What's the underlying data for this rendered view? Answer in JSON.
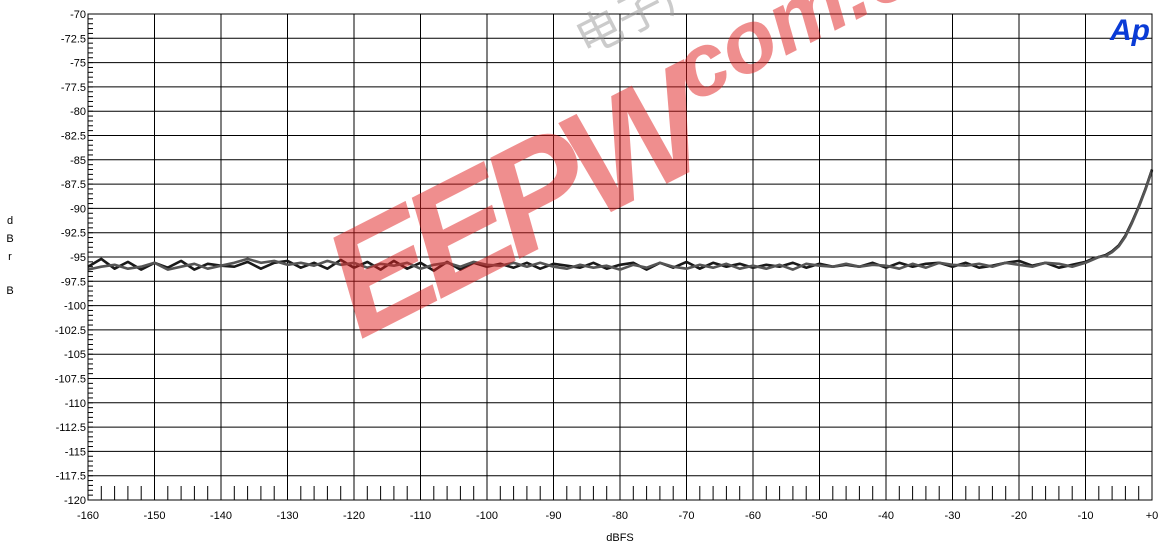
{
  "chart_data": {
    "type": "line",
    "xlabel": "dBFS",
    "ylabel": "dBr B",
    "xlim": [
      -160,
      0
    ],
    "ylim": [
      -120,
      -70
    ],
    "grid": true,
    "x_ticks": [
      -160,
      -150,
      -140,
      -130,
      -120,
      -110,
      -100,
      -90,
      -80,
      -70,
      -60,
      -50,
      -40,
      -30,
      -20,
      -10,
      0
    ],
    "x_tick_labels": [
      "-160",
      "-150",
      "-140",
      "-130",
      "-120",
      "-110",
      "-100",
      "-90",
      "-80",
      "-70",
      "-60",
      "-50",
      "-40",
      "-30",
      "-20",
      "-10",
      "+0"
    ],
    "y_ticks": [
      -70,
      -72.5,
      -75,
      -77.5,
      -80,
      -82.5,
      -85,
      -87.5,
      -90,
      -92.5,
      -95,
      -97.5,
      -100,
      -102.5,
      -105,
      -107.5,
      -110,
      -112.5,
      -115,
      -117.5,
      -120
    ],
    "y_tick_labels": [
      "-70",
      "-72.5",
      "-75",
      "-77.5",
      "-80",
      "-82.5",
      "-85",
      "-87.5",
      "-90",
      "-92.5",
      "-95",
      "-97.5",
      "-100",
      "-102.5",
      "-105",
      "-107.5",
      "-110",
      "-112.5",
      "-115",
      "-117.5",
      "-120"
    ],
    "series": [
      {
        "color": "#1a1a1a",
        "x": [
          -160,
          -158,
          -156,
          -154,
          -152,
          -150,
          -148,
          -146,
          -144,
          -142,
          -140,
          -138,
          -136,
          -134,
          -132,
          -130,
          -128,
          -126,
          -124,
          -122,
          -120,
          -118,
          -116,
          -114,
          -112,
          -110,
          -108,
          -106,
          -104,
          -102,
          -100,
          -98,
          -96,
          -94,
          -92,
          -90,
          -88,
          -86,
          -84,
          -82,
          -80,
          -78,
          -76,
          -74,
          -72,
          -70,
          -68,
          -66,
          -64,
          -62,
          -60,
          -58,
          -56,
          -54,
          -52,
          -50,
          -48,
          -46,
          -44,
          -42,
          -40,
          -38,
          -36,
          -34,
          -32,
          -30,
          -28,
          -26,
          -24,
          -22,
          -20,
          -18,
          -16,
          -14,
          -12,
          -10,
          -9,
          -8,
          -7,
          -6,
          -5,
          -4,
          -3,
          -2,
          -1,
          0
        ],
        "y": [
          -96.0,
          -95.2,
          -96.2,
          -95.5,
          -96.3,
          -95.6,
          -96.1,
          -95.4,
          -96.3,
          -95.7,
          -95.9,
          -96.0,
          -95.5,
          -96.2,
          -95.6,
          -95.4,
          -96.1,
          -95.6,
          -96.2,
          -95.3,
          -96.1,
          -95.5,
          -96.3,
          -95.4,
          -96.2,
          -95.6,
          -96.4,
          -95.5,
          -96.3,
          -95.6,
          -96.0,
          -95.7,
          -96.1,
          -95.6,
          -96.2,
          -95.7,
          -95.9,
          -96.1,
          -95.6,
          -96.2,
          -95.8,
          -95.6,
          -96.3,
          -95.6,
          -96.1,
          -95.5,
          -96.2,
          -95.6,
          -96.0,
          -95.7,
          -96.1,
          -95.8,
          -96.0,
          -95.6,
          -96.1,
          -95.7,
          -96.0,
          -95.8,
          -96.0,
          -95.6,
          -96.1,
          -95.6,
          -96.0,
          -95.7,
          -95.6,
          -96.0,
          -95.6,
          -96.1,
          -95.9,
          -95.6,
          -95.4,
          -95.9,
          -95.6,
          -96.1,
          -95.8,
          -95.5,
          -95.2,
          -95.0,
          -94.8,
          -94.4,
          -93.8,
          -92.8,
          -91.4,
          -89.8,
          -88.0,
          -86.0
        ]
      },
      {
        "color": "#555555",
        "x": [
          -160,
          -158,
          -156,
          -154,
          -152,
          -150,
          -148,
          -146,
          -144,
          -142,
          -140,
          -138,
          -136,
          -134,
          -132,
          -130,
          -128,
          -126,
          -124,
          -122,
          -120,
          -118,
          -116,
          -114,
          -112,
          -110,
          -108,
          -106,
          -104,
          -102,
          -100,
          -98,
          -96,
          -94,
          -92,
          -90,
          -88,
          -86,
          -84,
          -82,
          -80,
          -78,
          -76,
          -74,
          -72,
          -70,
          -68,
          -66,
          -64,
          -62,
          -60,
          -58,
          -56,
          -54,
          -52,
          -50,
          -48,
          -46,
          -44,
          -42,
          -40,
          -38,
          -36,
          -34,
          -32,
          -30,
          -28,
          -26,
          -24,
          -22,
          -20,
          -18,
          -16,
          -14,
          -12,
          -10,
          -9,
          -8,
          -7,
          -6,
          -5,
          -4,
          -3,
          -2,
          -1,
          0
        ],
        "y": [
          -96.3,
          -96.0,
          -95.8,
          -96.2,
          -96.0,
          -95.6,
          -96.3,
          -96.0,
          -95.7,
          -96.2,
          -95.9,
          -95.6,
          -95.2,
          -95.6,
          -95.4,
          -95.8,
          -95.6,
          -95.9,
          -95.4,
          -95.8,
          -95.6,
          -96.1,
          -95.7,
          -95.9,
          -95.6,
          -96.2,
          -95.8,
          -95.6,
          -96.0,
          -95.5,
          -95.8,
          -95.9,
          -95.6,
          -96.0,
          -95.6,
          -96.0,
          -96.2,
          -95.8,
          -96.1,
          -95.9,
          -96.3,
          -95.8,
          -96.1,
          -95.6,
          -96.0,
          -96.2,
          -95.8,
          -96.1,
          -95.7,
          -96.2,
          -95.9,
          -96.2,
          -95.8,
          -96.3,
          -95.7,
          -95.9,
          -96.0,
          -95.7,
          -96.0,
          -95.8,
          -95.9,
          -96.2,
          -95.7,
          -96.1,
          -95.6,
          -95.8,
          -95.9,
          -95.7,
          -96.0,
          -95.6,
          -95.8,
          -96.0,
          -95.6,
          -95.7,
          -96.0,
          -95.6,
          -95.3,
          -95.0,
          -94.9,
          -94.5,
          -93.9,
          -92.9,
          -91.5,
          -89.9,
          -88.1,
          -86.1
        ]
      }
    ]
  },
  "logo": {
    "text": "Ap",
    "color": "#0a3bd6"
  },
  "watermark": {
    "text": "EEPW",
    "subtext": ".com.cn",
    "hanzi": "电子产品世界",
    "color": "#e02020"
  }
}
